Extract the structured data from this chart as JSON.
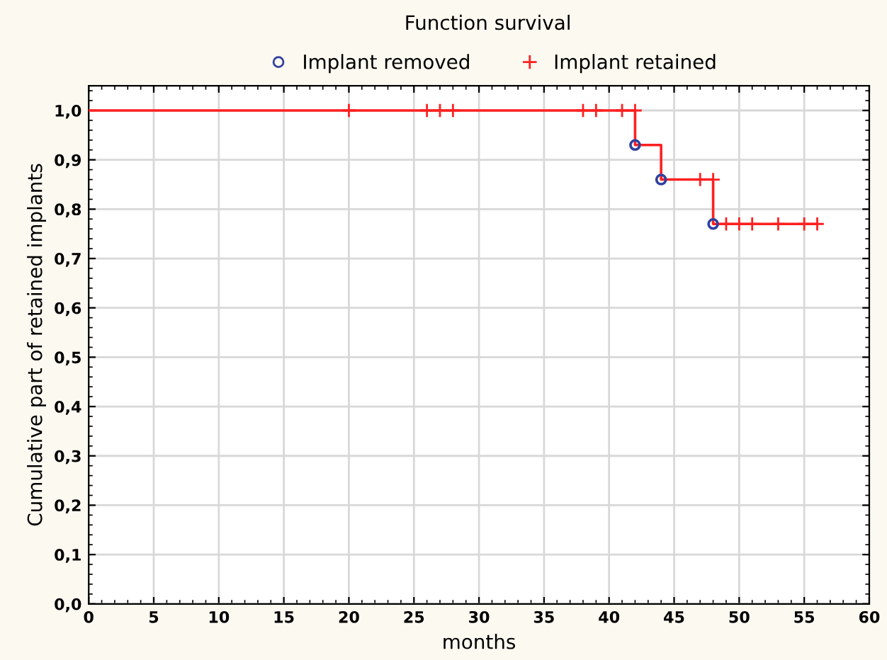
{
  "chart_data": {
    "type": "step",
    "title": "Function survival",
    "xlabel": "months",
    "ylabel": "Cumulative part of retained implants",
    "series": [
      {
        "color": "#ff2020",
        "x": [
          0,
          42,
          44,
          48,
          56
        ],
        "values": [
          1.0,
          0.93,
          0.86,
          0.77,
          0.77
        ]
      },
      {
        "type": "scatter",
        "name": "Implant removed",
        "color": "#3040a0",
        "marker": "circle",
        "x": [
          42,
          44,
          48
        ],
        "values": [
          0.93,
          0.86,
          0.77
        ]
      },
      {
        "type": "scatter",
        "name": "Implant retained",
        "color": "#ff2020",
        "marker": "cross",
        "x": [
          20,
          26,
          27,
          28,
          38,
          39,
          41,
          42,
          47,
          48,
          49,
          50,
          51,
          53,
          55,
          56
        ],
        "values": [
          1.0,
          1.0,
          1.0,
          1.0,
          1.0,
          1.0,
          1.0,
          1.0,
          0.86,
          0.86,
          0.77,
          0.77,
          0.77,
          0.77,
          0.77,
          0.77
        ]
      }
    ],
    "xlim": [
      0,
      60
    ],
    "xticks": [
      0,
      5,
      10,
      15,
      20,
      25,
      30,
      35,
      40,
      45,
      50,
      55,
      60
    ],
    "ylim": [
      0,
      1.05
    ],
    "yticks": [
      {
        "value": 0,
        "label": "0,0"
      },
      {
        "value": 0.1,
        "label": "0,1"
      },
      {
        "value": 0.2,
        "label": "0,2"
      },
      {
        "value": 0.3,
        "label": "0,3"
      },
      {
        "value": 0.4,
        "label": "0,4"
      },
      {
        "value": 0.5,
        "label": "0,5"
      },
      {
        "value": 0.6,
        "label": "0,6"
      },
      {
        "value": 0.7,
        "label": "0,7"
      },
      {
        "value": 0.8,
        "label": "0,8"
      },
      {
        "value": 0.9,
        "label": "0,9"
      },
      {
        "value": 1.0,
        "label": "1,0"
      }
    ],
    "grid": true,
    "legend": "top"
  }
}
